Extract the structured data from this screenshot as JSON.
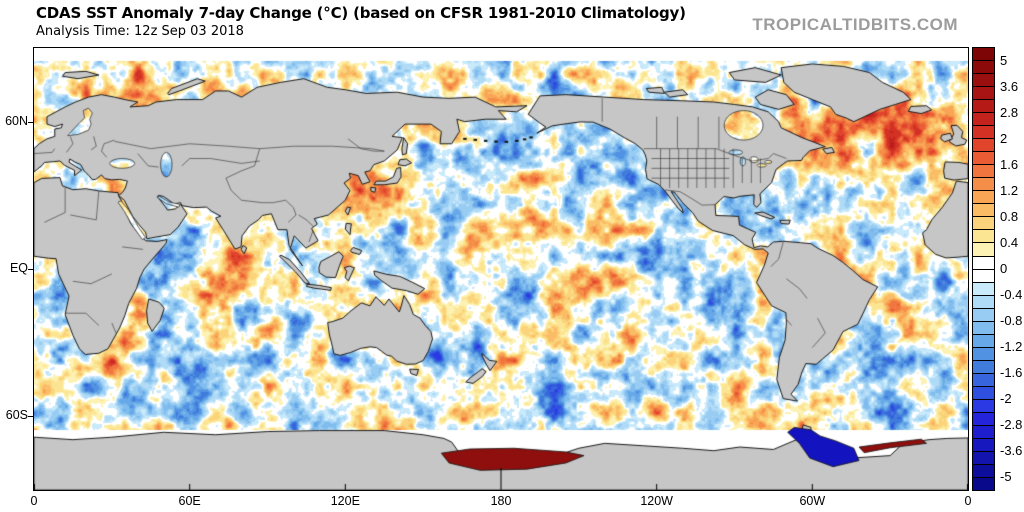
{
  "header": {
    "title": "CDAS SST Anomaly 7-day Change (°C) (based on CFSR 1981-2010 Climatology)",
    "analysis_time": "Analysis Time: 12z Sep 03 2018",
    "watermark": "TROPICALTIDBITS.COM"
  },
  "map": {
    "projection": "equirectangular",
    "lon_range": [
      0,
      360
    ],
    "lat_range": [
      -90,
      90
    ],
    "lat_ticks": [
      {
        "label": "60N",
        "lat": 60
      },
      {
        "label": "EQ",
        "lat": 0
      },
      {
        "label": "60S",
        "lat": -60
      }
    ],
    "lon_ticks": [
      {
        "label": "0",
        "lon": 0
      },
      {
        "label": "60E",
        "lon": 60
      },
      {
        "label": "120E",
        "lon": 120
      },
      {
        "label": "180",
        "lon": 180
      },
      {
        "label": "120W",
        "lon": 240
      },
      {
        "label": "60W",
        "lon": 300
      },
      {
        "label": "0",
        "lon": 360
      }
    ],
    "land_color": "#c6c6c6",
    "coast_color": "#1a1a1a",
    "country_border_color": "#3c3c3c",
    "no_data_color": "#ffffff",
    "ross_sea_anomaly_color": "#8e0f0d",
    "weddell_sea_anomaly_color": "#1313c0"
  },
  "colorbar": {
    "units": "°C",
    "boundaries": [
      -5,
      -4,
      -3.6,
      -3.2,
      -2.8,
      -2.4,
      -2,
      -1.8,
      -1.6,
      -1.4,
      -1.2,
      -1,
      -0.8,
      -0.6,
      -0.4,
      -0.2,
      0,
      0.2,
      0.4,
      0.6,
      0.8,
      1,
      1.2,
      1.4,
      1.6,
      1.8,
      2,
      2.4,
      2.8,
      3.2,
      3.6,
      4,
      5
    ],
    "tick_labels": [
      "5",
      "3.6",
      "2.8",
      "2",
      "1.6",
      "1.2",
      "0.8",
      "0.4",
      "0",
      "-0.4",
      "-0.8",
      "-1.2",
      "-1.6",
      "-2",
      "-2.8",
      "-3.6",
      "-5"
    ],
    "cell_colors": [
      "#09098c",
      "#0e0e9d",
      "#1313ae",
      "#1818bf",
      "#1e1ecf",
      "#2425da",
      "#2a39e4",
      "#2f4fe0",
      "#3765de",
      "#3f7cdb",
      "#5292e2",
      "#67a9e8",
      "#80bcee",
      "#98ccf2",
      "#b0dbf7",
      "#c9eafb",
      "#ffffff",
      "#ffffff",
      "#fdf2b3",
      "#fce592",
      "#fbd37b",
      "#fabd66",
      "#f8a655",
      "#f58e48",
      "#f0753e",
      "#e95c34",
      "#e0452c",
      "#d23124",
      "#c4221d",
      "#b61a17",
      "#a81413",
      "#9a0f0f",
      "#8c0a0a",
      "#7e0506"
    ]
  }
}
